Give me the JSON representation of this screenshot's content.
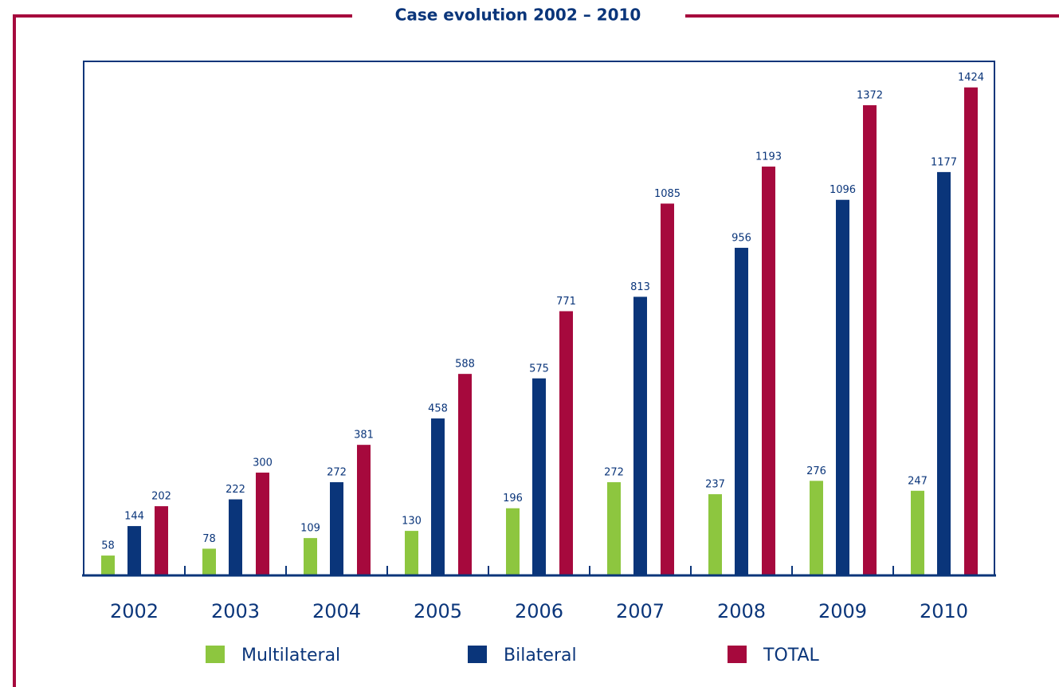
{
  "chart_data": {
    "type": "bar",
    "title": "Case evolution 2002 – 2010",
    "categories": [
      "2002",
      "2003",
      "2004",
      "2005",
      "2006",
      "2007",
      "2008",
      "2009",
      "2010"
    ],
    "series": [
      {
        "name": "Multilateral",
        "color": "#8dc63f",
        "values": [
          58,
          78,
          109,
          130,
          196,
          272,
          237,
          276,
          247
        ]
      },
      {
        "name": "Bilateral",
        "color": "#0a357a",
        "values": [
          144,
          222,
          272,
          458,
          575,
          813,
          956,
          1096,
          1177
        ]
      },
      {
        "name": "TOTAL",
        "color": "#a6093d",
        "values": [
          202,
          300,
          381,
          588,
          771,
          1085,
          1193,
          1372,
          1424
        ]
      }
    ],
    "ylim": [
      0,
      1500
    ],
    "frame_color": "#a6093d"
  }
}
